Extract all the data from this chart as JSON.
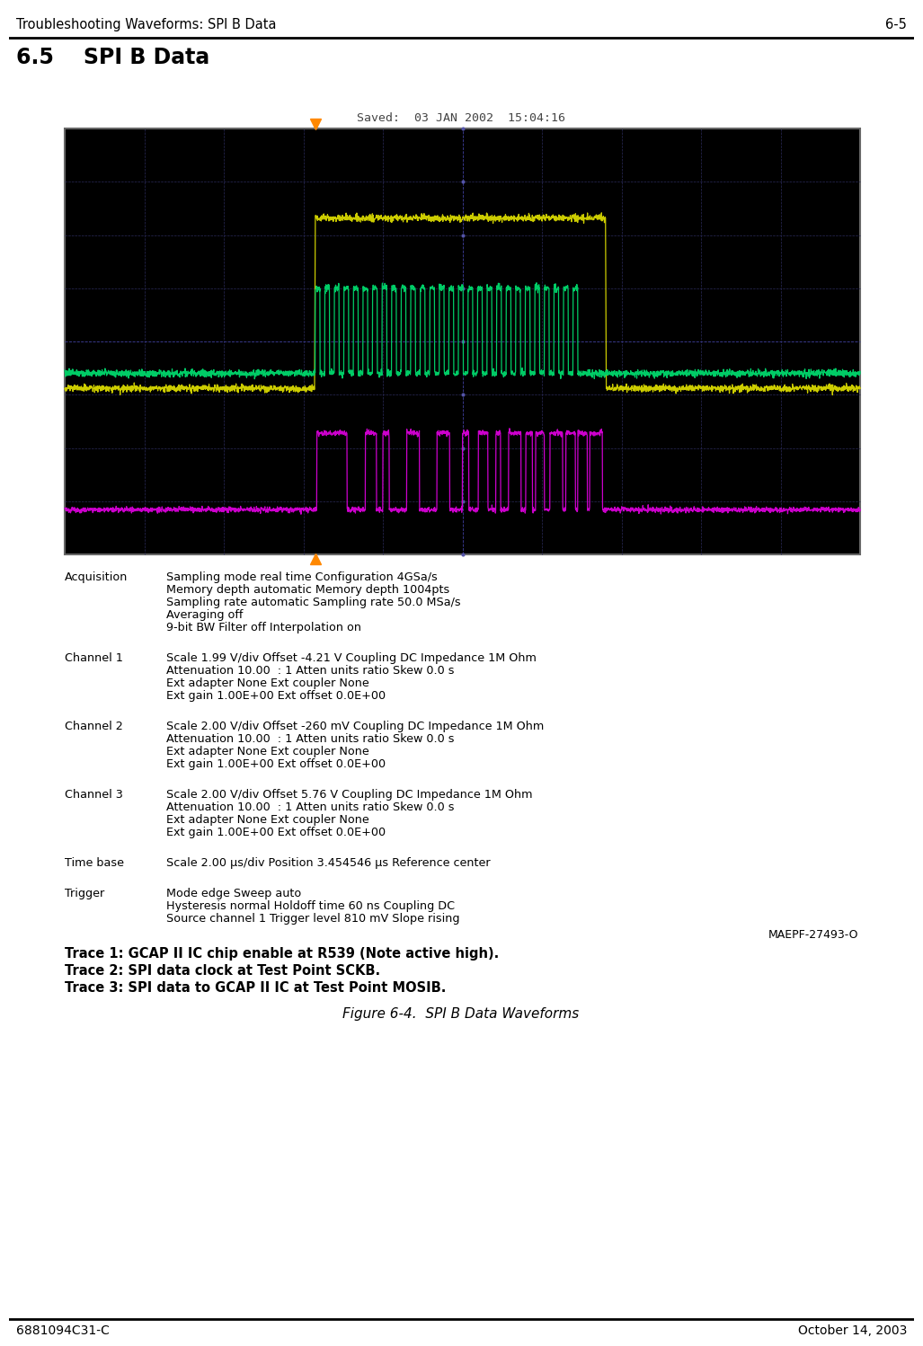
{
  "header_left": "Troubleshooting Waveforms: SPI B Data",
  "header_right": "6-5",
  "section_title": "6.5    SPI B Data",
  "oscilloscope_title": "Saved:  03 JAN 2002  15:04:16",
  "oscilloscope_bg": "#000000",
  "trace1_color": "#cccc00",
  "trace2_color": "#00cc66",
  "trace3_color": "#cc00cc",
  "trigger_marker_color": "#ff8800",
  "acq_label": "Acquisition",
  "acq_text_lines": [
    "Sampling mode real time Configuration 4GSa/s",
    "Memory depth automatic Memory depth 1004pts",
    "Sampling rate automatic Sampling rate 50.0 MSa/s",
    "Averaging off",
    "9-bit BW Filter off Interpolation on"
  ],
  "ch1_label": "Channel 1",
  "ch1_text_lines": [
    "Scale 1.99 V/div Offset -4.21 V Coupling DC Impedance 1M Ohm",
    "Attenuation 10.00  : 1 Atten units ratio Skew 0.0 s",
    "Ext adapter None Ext coupler None",
    "Ext gain 1.00E+00 Ext offset 0.0E+00"
  ],
  "ch2_label": "Channel 2",
  "ch2_text_lines": [
    "Scale 2.00 V/div Offset -260 mV Coupling DC Impedance 1M Ohm",
    "Attenuation 10.00  : 1 Atten units ratio Skew 0.0 s",
    "Ext adapter None Ext coupler None",
    "Ext gain 1.00E+00 Ext offset 0.0E+00"
  ],
  "ch3_label": "Channel 3",
  "ch3_text_lines": [
    "Scale 2.00 V/div Offset 5.76 V Coupling DC Impedance 1M Ohm",
    "Attenuation 10.00  : 1 Atten units ratio Skew 0.0 s",
    "Ext adapter None Ext coupler None",
    "Ext gain 1.00E+00 Ext offset 0.0E+00"
  ],
  "timebase_label": "Time base",
  "timebase_text_lines": [
    "Scale 2.00 μs/div Position 3.454546 μs Reference center"
  ],
  "trigger_label": "Trigger",
  "trigger_text_lines": [
    "Mode edge Sweep auto",
    "Hysteresis normal Holdoff time 60 ns Coupling DC",
    "Source channel 1 Trigger level 810 mV Slope rising"
  ],
  "figure_ref": "MAEPF-27493-O",
  "trace1_caption": "Trace 1: GCAP II IC chip enable at R539 (Note active high).",
  "trace2_caption": "Trace 2: SPI data clock at Test Point SCKB.",
  "trace3_caption": "Trace 3: SPI data to GCAP II IC at Test Point MOSIB.",
  "figure_caption": "Figure 6-4.  SPI B Data Waveforms",
  "footer_left": "6881094C31-C",
  "footer_right": "October 14, 2003"
}
